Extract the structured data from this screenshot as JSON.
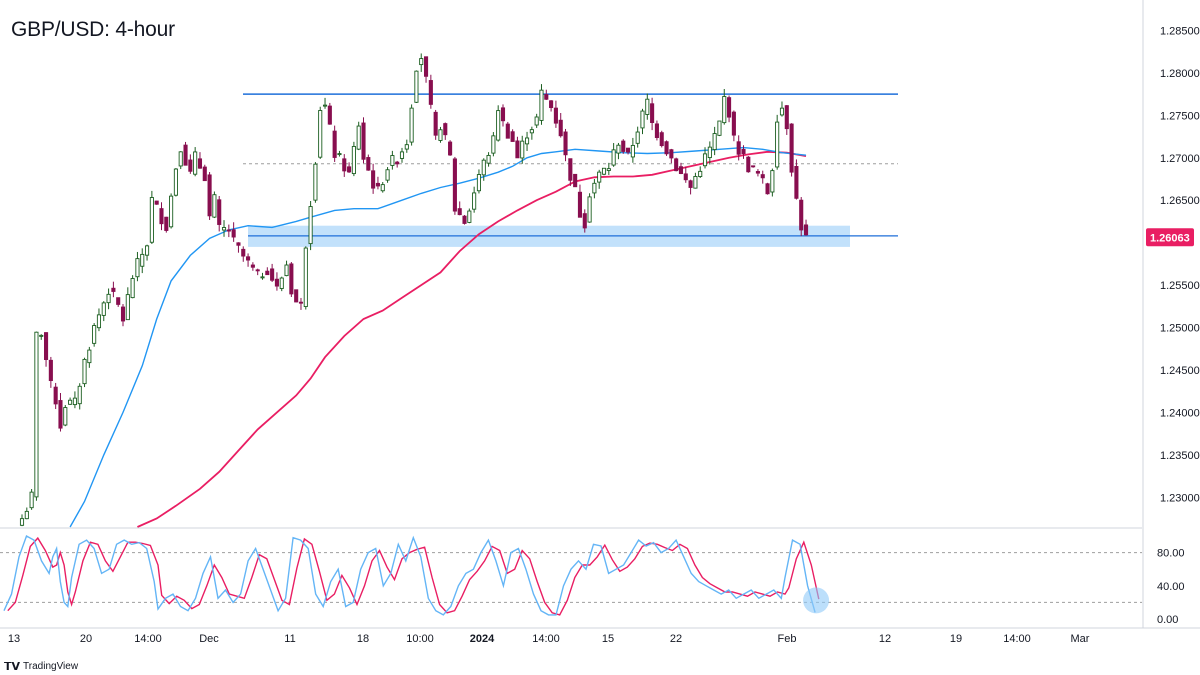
{
  "title": "GBP/USD: 4-hour",
  "brand": {
    "logo": "𝗧𝗩",
    "name": "TradingView"
  },
  "colors": {
    "up": "#1b5e20",
    "down": "#880e4f",
    "ma_fast": "#2196f3",
    "ma_slow": "#e91e63",
    "level": "#1e6fd9",
    "zone": "#bbdefb",
    "price_tag": "#e91e63",
    "stoch_k": "#64b5f6",
    "stoch_d": "#e91e63",
    "highlight": "#90caf9"
  },
  "price_label": "1.26063",
  "chart_data": {
    "type": "candlestick",
    "x_tick_labels": [
      "13",
      "20",
      "14:00",
      "Dec",
      "11",
      "18",
      "10:00",
      "2024",
      "14:00",
      "15",
      "22",
      "Feb",
      "12",
      "19",
      "14:00",
      "Mar"
    ],
    "y_tick_labels": [
      "1.28500",
      "1.28000",
      "1.27500",
      "1.27000",
      "1.26500",
      "1.25500",
      "1.25000",
      "1.24500",
      "1.24000",
      "1.23500",
      "1.23000"
    ],
    "ylim": [
      1.2265,
      1.288
    ],
    "last_price": 1.26063,
    "levels": {
      "resistance": 1.2775,
      "midline": 1.2693,
      "support": 1.2608,
      "support_zone": [
        1.2595,
        1.262
      ]
    },
    "price_path": [
      [
        0,
        1.2275
      ],
      [
        2,
        1.23
      ],
      [
        3,
        1.249
      ],
      [
        4,
        1.2495
      ],
      [
        6,
        1.243
      ],
      [
        7,
        1.2415
      ],
      [
        8,
        1.2385
      ],
      [
        9,
        1.241
      ],
      [
        11,
        1.241
      ],
      [
        13,
        1.246
      ],
      [
        15,
        1.25
      ],
      [
        17,
        1.253
      ],
      [
        18,
        1.2545
      ],
      [
        20,
        1.2525
      ],
      [
        21,
        1.251
      ],
      [
        23,
        1.256
      ],
      [
        26,
        1.26
      ],
      [
        27,
        1.265
      ],
      [
        30,
        1.262
      ],
      [
        32,
        1.269
      ],
      [
        33,
        1.2715
      ],
      [
        35,
        1.268
      ],
      [
        36,
        1.27
      ],
      [
        38,
        1.268
      ],
      [
        39,
        1.263
      ],
      [
        40,
        1.265
      ],
      [
        41,
        1.2615
      ],
      [
        43,
        1.2615
      ],
      [
        44,
        1.26
      ],
      [
        47,
        1.2575
      ],
      [
        49,
        1.256
      ],
      [
        51,
        1.257
      ],
      [
        53,
        1.2545
      ],
      [
        55,
        1.2575
      ],
      [
        56,
        1.2545
      ],
      [
        57,
        1.253
      ],
      [
        58,
        1.2525
      ],
      [
        59,
        1.26
      ],
      [
        61,
        1.27
      ],
      [
        62,
        1.276
      ],
      [
        63,
        1.276
      ],
      [
        65,
        1.2705
      ],
      [
        67,
        1.269
      ],
      [
        68,
        1.268
      ],
      [
        70,
        1.274
      ],
      [
        71,
        1.27
      ],
      [
        73,
        1.267
      ],
      [
        74,
        1.266
      ],
      [
        76,
        1.269
      ],
      [
        78,
        1.27
      ],
      [
        80,
        1.272
      ],
      [
        82,
        1.281
      ],
      [
        83,
        1.282
      ],
      [
        84,
        1.279
      ],
      [
        86,
        1.272
      ],
      [
        87,
        1.274
      ],
      [
        89,
        1.27
      ],
      [
        90,
        1.264
      ],
      [
        92,
        1.2625
      ],
      [
        93,
        1.264
      ],
      [
        95,
        1.268
      ],
      [
        98,
        1.272
      ],
      [
        99,
        1.276
      ],
      [
        100,
        1.274
      ],
      [
        102,
        1.272
      ],
      [
        103,
        1.27
      ],
      [
        105,
        1.273
      ],
      [
        107,
        1.2745
      ],
      [
        108,
        1.2775
      ],
      [
        110,
        1.276
      ],
      [
        112,
        1.273
      ],
      [
        113,
        1.27
      ],
      [
        115,
        1.266
      ],
      [
        116,
        1.2635
      ],
      [
        117,
        1.2625
      ],
      [
        118,
        1.266
      ],
      [
        120,
        1.268
      ],
      [
        122,
        1.269
      ],
      [
        124,
        1.272
      ],
      [
        126,
        1.27
      ],
      [
        128,
        1.2735
      ],
      [
        130,
        1.2765
      ],
      [
        131,
        1.274
      ],
      [
        133,
        1.272
      ],
      [
        135,
        1.27
      ],
      [
        137,
        1.268
      ],
      [
        139,
        1.2665
      ],
      [
        141,
        1.269
      ],
      [
        143,
        1.271
      ],
      [
        145,
        1.274
      ],
      [
        146,
        1.277
      ],
      [
        147,
        1.2755
      ],
      [
        148,
        1.272
      ],
      [
        150,
        1.27
      ],
      [
        151,
        1.269
      ],
      [
        153,
        1.268
      ],
      [
        155,
        1.266
      ],
      [
        156,
        1.269
      ],
      [
        157,
        1.275
      ],
      [
        158,
        1.276
      ],
      [
        159,
        1.274
      ],
      [
        160,
        1.269
      ],
      [
        161,
        1.265
      ],
      [
        162,
        1.262
      ],
      [
        163,
        1.2605
      ]
    ],
    "ma_fast_path": [
      [
        10,
        1.2265
      ],
      [
        13,
        1.2295
      ],
      [
        17,
        1.235
      ],
      [
        21,
        1.24
      ],
      [
        25,
        1.2455
      ],
      [
        28,
        1.251
      ],
      [
        31,
        1.2555
      ],
      [
        35,
        1.2585
      ],
      [
        39,
        1.2605
      ],
      [
        43,
        1.2615
      ],
      [
        47,
        1.262
      ],
      [
        52,
        1.2618
      ],
      [
        57,
        1.2625
      ],
      [
        60,
        1.263
      ],
      [
        65,
        1.2638
      ],
      [
        69,
        1.264
      ],
      [
        74,
        1.264
      ],
      [
        79,
        1.265
      ],
      [
        83,
        1.2658
      ],
      [
        87,
        1.2665
      ],
      [
        91,
        1.267
      ],
      [
        95,
        1.2676
      ],
      [
        99,
        1.2683
      ],
      [
        102,
        1.269
      ],
      [
        105,
        1.27
      ],
      [
        108,
        1.2705
      ],
      [
        111,
        1.2707
      ],
      [
        115,
        1.271
      ],
      [
        120,
        1.2708
      ],
      [
        125,
        1.2706
      ],
      [
        130,
        1.2705
      ],
      [
        135,
        1.2706
      ],
      [
        140,
        1.2708
      ],
      [
        145,
        1.271
      ],
      [
        150,
        1.2712
      ],
      [
        154,
        1.271
      ],
      [
        158,
        1.2706
      ],
      [
        163,
        1.2703
      ]
    ],
    "ma_slow_path": [
      [
        24,
        1.2265
      ],
      [
        28,
        1.2275
      ],
      [
        32,
        1.229
      ],
      [
        37,
        1.231
      ],
      [
        41,
        1.233
      ],
      [
        45,
        1.2355
      ],
      [
        49,
        1.238
      ],
      [
        53,
        1.24
      ],
      [
        57,
        1.242
      ],
      [
        60,
        1.244
      ],
      [
        63,
        1.2465
      ],
      [
        67,
        1.249
      ],
      [
        71,
        1.251
      ],
      [
        75,
        1.252
      ],
      [
        79,
        1.2535
      ],
      [
        83,
        1.255
      ],
      [
        87,
        1.2565
      ],
      [
        91,
        1.259
      ],
      [
        95,
        1.261
      ],
      [
        99,
        1.2625
      ],
      [
        103,
        1.2638
      ],
      [
        107,
        1.265
      ],
      [
        111,
        1.266
      ],
      [
        115,
        1.2672
      ],
      [
        119,
        1.2677
      ],
      [
        123,
        1.2678
      ],
      [
        127,
        1.2678
      ],
      [
        131,
        1.268
      ],
      [
        135,
        1.2685
      ],
      [
        139,
        1.269
      ],
      [
        143,
        1.2695
      ],
      [
        147,
        1.27
      ],
      [
        151,
        1.2704
      ],
      [
        155,
        1.2707
      ],
      [
        159,
        1.2706
      ],
      [
        163,
        1.2702
      ]
    ],
    "stochastic": {
      "ylim": [
        0,
        100
      ],
      "y_tick_labels": [
        "80.00",
        "40.00",
        "0.00"
      ],
      "levels": [
        80,
        20
      ],
      "k_path": [
        [
          0,
          10
        ],
        [
          2,
          30
        ],
        [
          4,
          75
        ],
        [
          6,
          100
        ],
        [
          8,
          95
        ],
        [
          10,
          70
        ],
        [
          12,
          55
        ],
        [
          13,
          75
        ],
        [
          14,
          85
        ],
        [
          15,
          45
        ],
        [
          16,
          20
        ],
        [
          17,
          15
        ],
        [
          18,
          50
        ],
        [
          20,
          90
        ],
        [
          22,
          95
        ],
        [
          24,
          85
        ],
        [
          26,
          55
        ],
        [
          28,
          60
        ],
        [
          30,
          90
        ],
        [
          32,
          95
        ],
        [
          34,
          90
        ],
        [
          36,
          92
        ],
        [
          38,
          85
        ],
        [
          40,
          45
        ],
        [
          41,
          12
        ],
        [
          43,
          25
        ],
        [
          45,
          30
        ],
        [
          47,
          15
        ],
        [
          49,
          10
        ],
        [
          51,
          25
        ],
        [
          53,
          55
        ],
        [
          55,
          75
        ],
        [
          57,
          25
        ],
        [
          59,
          35
        ],
        [
          61,
          20
        ],
        [
          63,
          30
        ],
        [
          65,
          70
        ],
        [
          67,
          85
        ],
        [
          69,
          60
        ],
        [
          71,
          35
        ],
        [
          73,
          10
        ],
        [
          75,
          25
        ],
        [
          77,
          98
        ],
        [
          79,
          95
        ],
        [
          81,
          85
        ],
        [
          83,
          30
        ],
        [
          85,
          15
        ],
        [
          87,
          45
        ],
        [
          89,
          60
        ],
        [
          91,
          15
        ],
        [
          93,
          20
        ],
        [
          95,
          60
        ],
        [
          97,
          80
        ],
        [
          99,
          85
        ],
        [
          101,
          40
        ],
        [
          103,
          55
        ],
        [
          105,
          90
        ],
        [
          107,
          70
        ],
        [
          109,
          98
        ],
        [
          111,
          75
        ],
        [
          113,
          25
        ],
        [
          115,
          10
        ],
        [
          117,
          5
        ],
        [
          119,
          15
        ],
        [
          121,
          40
        ],
        [
          123,
          55
        ],
        [
          125,
          60
        ],
        [
          127,
          80
        ],
        [
          129,
          95
        ],
        [
          131,
          70
        ],
        [
          133,
          40
        ],
        [
          135,
          80
        ],
        [
          137,
          85
        ],
        [
          139,
          60
        ],
        [
          141,
          30
        ],
        [
          143,
          10
        ],
        [
          145,
          5
        ],
        [
          147,
          5
        ],
        [
          149,
          40
        ],
        [
          151,
          60
        ],
        [
          153,
          70
        ],
        [
          155,
          60
        ],
        [
          157,
          90
        ],
        [
          159,
          88
        ],
        [
          161,
          55
        ],
        [
          163,
          60
        ],
        [
          165,
          65
        ],
        [
          167,
          80
        ],
        [
          169,
          95
        ],
        [
          171,
          88
        ],
        [
          173,
          92
        ],
        [
          175,
          80
        ],
        [
          177,
          85
        ],
        [
          179,
          95
        ],
        [
          181,
          75
        ],
        [
          183,
          55
        ],
        [
          185,
          45
        ],
        [
          187,
          40
        ],
        [
          189,
          35
        ],
        [
          191,
          30
        ],
        [
          193,
          35
        ],
        [
          195,
          25
        ],
        [
          197,
          30
        ],
        [
          199,
          35
        ],
        [
          201,
          25
        ],
        [
          203,
          30
        ],
        [
          205,
          35
        ],
        [
          207,
          25
        ],
        [
          208,
          50
        ],
        [
          210,
          95
        ],
        [
          212,
          90
        ],
        [
          214,
          40
        ],
        [
          216,
          8
        ]
      ]
    }
  }
}
